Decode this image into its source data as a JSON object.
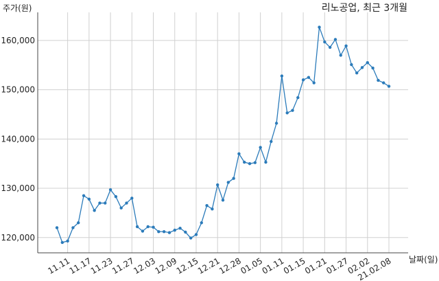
{
  "chart_data": {
    "type": "line",
    "title": "리노공업, 최근 3개월",
    "y_label": "주가(원)",
    "x_label": "날짜(일)",
    "categories": [
      null,
      null,
      "11.11",
      null,
      null,
      null,
      "11.17",
      null,
      null,
      null,
      "11.23",
      null,
      null,
      null,
      "11.27",
      null,
      null,
      null,
      "12.03",
      null,
      null,
      null,
      "12.09",
      null,
      null,
      null,
      "12.15",
      null,
      null,
      null,
      "12.21",
      null,
      null,
      null,
      "12.28",
      null,
      null,
      null,
      "01.05",
      null,
      null,
      null,
      "01.11",
      null,
      null,
      null,
      "01.15",
      null,
      null,
      null,
      "01.21",
      null,
      null,
      null,
      "01.27",
      null,
      null,
      null,
      "02.02",
      null,
      null,
      null,
      "21.02.08"
    ],
    "series": [
      {
        "name": "리노공업",
        "color": "#2b7bba",
        "values": [
          122000,
          119000,
          119300,
          122000,
          123000,
          128500,
          127800,
          125500,
          127000,
          127000,
          129700,
          128300,
          126000,
          127000,
          128000,
          122200,
          121300,
          122200,
          122100,
          121200,
          121200,
          121000,
          121500,
          121900,
          121100,
          119900,
          120600,
          123000,
          126500,
          125800,
          130700,
          127600,
          131200,
          132000,
          137000,
          135300,
          135000,
          135200,
          138300,
          135300,
          139500,
          143200,
          152800,
          145300,
          145800,
          148400,
          152000,
          152500,
          151400,
          162700,
          159700,
          158600,
          160200,
          157000,
          158900,
          155100,
          153400,
          154500,
          155500,
          154400,
          151900,
          151400,
          150700
        ]
      }
    ],
    "ylim": [
      116900,
      165700
    ],
    "yticks": [
      {
        "value": 120000,
        "label": "120,000"
      },
      {
        "value": 130000,
        "label": "130,000"
      },
      {
        "value": 140000,
        "label": "140,000"
      },
      {
        "value": 150000,
        "label": "150,000"
      },
      {
        "value": 160000,
        "label": "160,000"
      }
    ],
    "grid": true
  }
}
